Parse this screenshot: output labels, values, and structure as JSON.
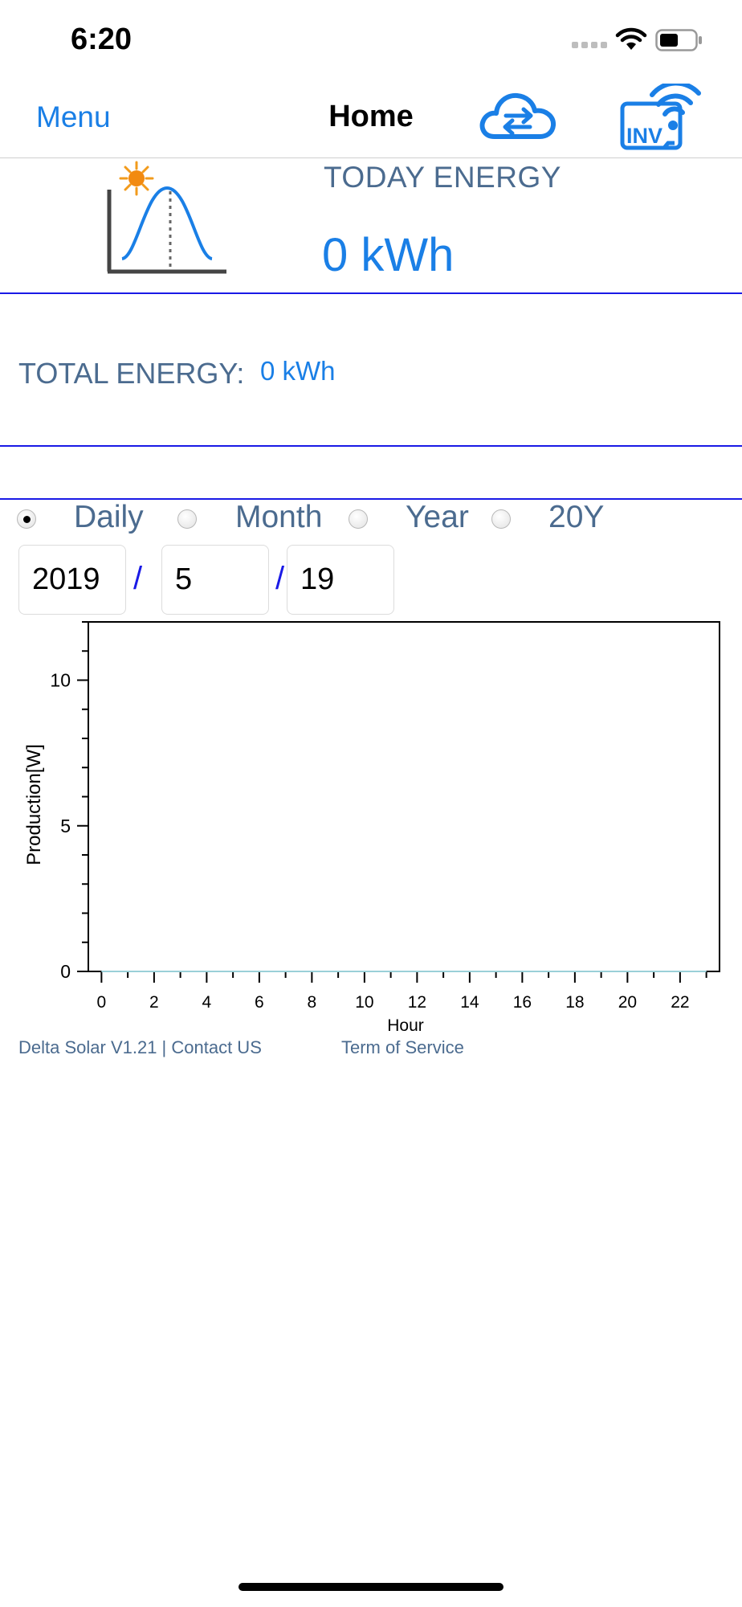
{
  "status_bar": {
    "time": "6:20"
  },
  "nav": {
    "menu_label": "Menu",
    "title": "Home",
    "cloud_icon": "cloud-sync-icon",
    "inverter_icon": "inverter-wifi-icon",
    "inverter_badge": "INV"
  },
  "today_energy": {
    "label": "TODAY ENERGY",
    "value": "0 kWh",
    "icon": "solar-production-curve-icon"
  },
  "total_energy": {
    "label": "TOTAL ENERGY:",
    "value": "0 kWh"
  },
  "period": {
    "options": [
      "Daily",
      "Month",
      "Year",
      "20Y"
    ],
    "selected": "Daily"
  },
  "date": {
    "year": "2019",
    "month": "5",
    "day": "19",
    "separator": "/"
  },
  "chart_data": {
    "type": "line",
    "xlabel": "Hour",
    "ylabel": "Production[W]",
    "xlim": [
      -0.5,
      23.5
    ],
    "ylim": [
      0,
      12
    ],
    "x_ticks": [
      0,
      2,
      4,
      6,
      8,
      10,
      12,
      14,
      16,
      18,
      20,
      22
    ],
    "y_ticks": [
      0,
      5,
      10
    ],
    "x": [
      0,
      1,
      2,
      3,
      4,
      5,
      6,
      7,
      8,
      9,
      10,
      11,
      12,
      13,
      14,
      15,
      16,
      17,
      18,
      19,
      20,
      21,
      22,
      23
    ],
    "values": [
      0,
      0,
      0,
      0,
      0,
      0,
      0,
      0,
      0,
      0,
      0,
      0,
      0,
      0,
      0,
      0,
      0,
      0,
      0,
      0,
      0,
      0,
      0,
      0
    ],
    "line_color": "#9ad0d8",
    "grid": false
  },
  "footer": {
    "version_contact": "Delta Solar V1.21 | Contact US",
    "terms": "Term of Service"
  },
  "colors": {
    "accent": "#1a7fe6",
    "label": "#4b6b8f",
    "divider": "#1a1ae6"
  }
}
